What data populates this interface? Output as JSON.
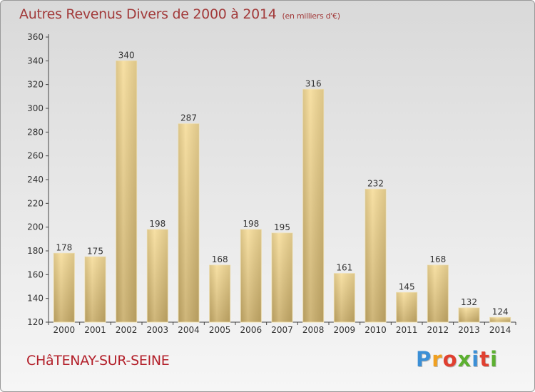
{
  "chart_data": {
    "type": "bar",
    "title": "Autres Revenus Divers de 2000 à 2014",
    "subtitle": "(en milliers d'€)",
    "categories": [
      "2000",
      "2001",
      "2002",
      "2003",
      "2004",
      "2005",
      "2006",
      "2007",
      "2008",
      "2009",
      "2010",
      "2011",
      "2012",
      "2013",
      "2014"
    ],
    "values": [
      178,
      175,
      340,
      198,
      287,
      168,
      198,
      195,
      316,
      161,
      232,
      145,
      168,
      132,
      124
    ],
    "ylim": [
      120,
      360
    ],
    "yticks": [
      120,
      140,
      160,
      180,
      200,
      220,
      240,
      260,
      280,
      300,
      320,
      340,
      360
    ],
    "xlabel": "",
    "ylabel": "",
    "grid": false,
    "bar_color": "#e8c97a"
  },
  "footer": {
    "city": "CHâTENAY-SUR-SEINE"
  },
  "logo": {
    "text": "Proxiti",
    "colors": [
      "#3b8fd6",
      "#f0a020",
      "#e04030",
      "#5cb030",
      "#3b8fd6",
      "#e04030",
      "#5cb030"
    ]
  }
}
